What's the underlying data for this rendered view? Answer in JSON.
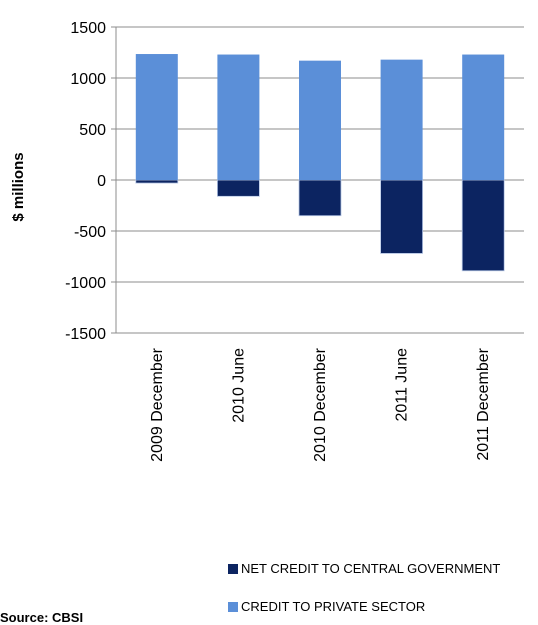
{
  "chart_data": {
    "type": "bar",
    "stacked": true,
    "categories": [
      "2009 December",
      "2010 June",
      "2010 December",
      "2011 June",
      "2011 December"
    ],
    "series": [
      {
        "name": "NET CREDIT TO CENTRAL GOVERNMENT",
        "color": "#0c2461",
        "values": [
          -30,
          -160,
          -350,
          -720,
          -890
        ]
      },
      {
        "name": "CREDIT TO PRIVATE SECTOR",
        "color": "#5b8fd8",
        "values": [
          1235,
          1230,
          1170,
          1180,
          1230
        ]
      }
    ],
    "ylabel": "$ millions",
    "ylim": [
      -1500,
      1500
    ],
    "yticks": [
      1500,
      1000,
      500,
      0,
      -500,
      -1000,
      -1500
    ],
    "grid": true,
    "legend_position": "bottom"
  },
  "source_label": "Source: CBSI"
}
